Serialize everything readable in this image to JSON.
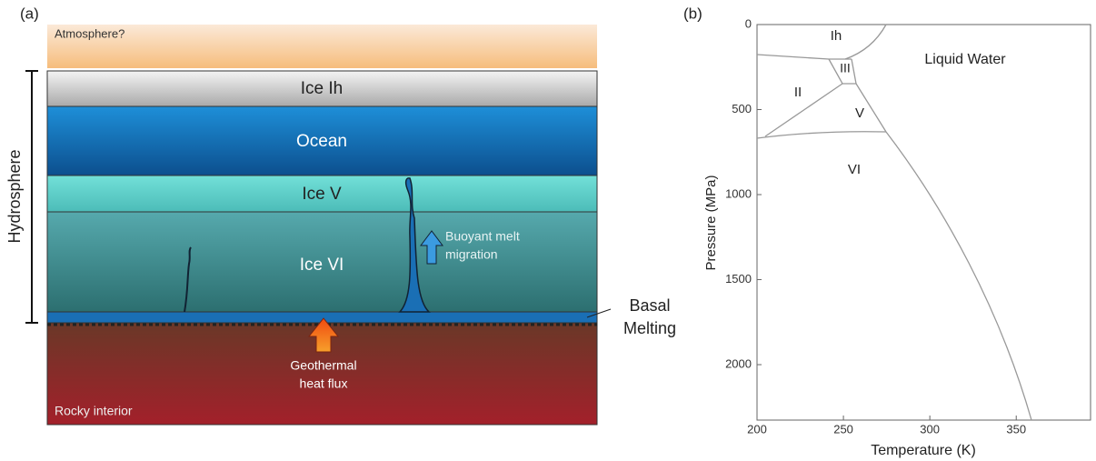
{
  "panel_a": {
    "label": "(a)",
    "atmosphere": "Atmosphere?",
    "layers": [
      "Ice Ih",
      "Ocean",
      "Ice V",
      "Ice VI"
    ],
    "hydrosphere": "Hydrosphere",
    "buoyant": [
      "Buoyant melt",
      "migration"
    ],
    "geothermal": [
      "Geothermal",
      "heat flux"
    ],
    "basal": [
      "Basal",
      "Melting"
    ],
    "rocky": "Rocky interior"
  },
  "panel_b": {
    "label": "(b)",
    "x_label": "Temperature (K)",
    "y_label": "Pressure (MPa)",
    "xlim": [
      200,
      393
    ],
    "ylim": [
      0,
      2326
    ],
    "xticks": [
      200,
      250,
      300,
      350
    ],
    "yticks": [
      0,
      500,
      1000,
      1500,
      2000
    ],
    "regions": [
      "Ih",
      "III",
      "II",
      "V",
      "VI",
      "Liquid Water"
    ]
  }
}
